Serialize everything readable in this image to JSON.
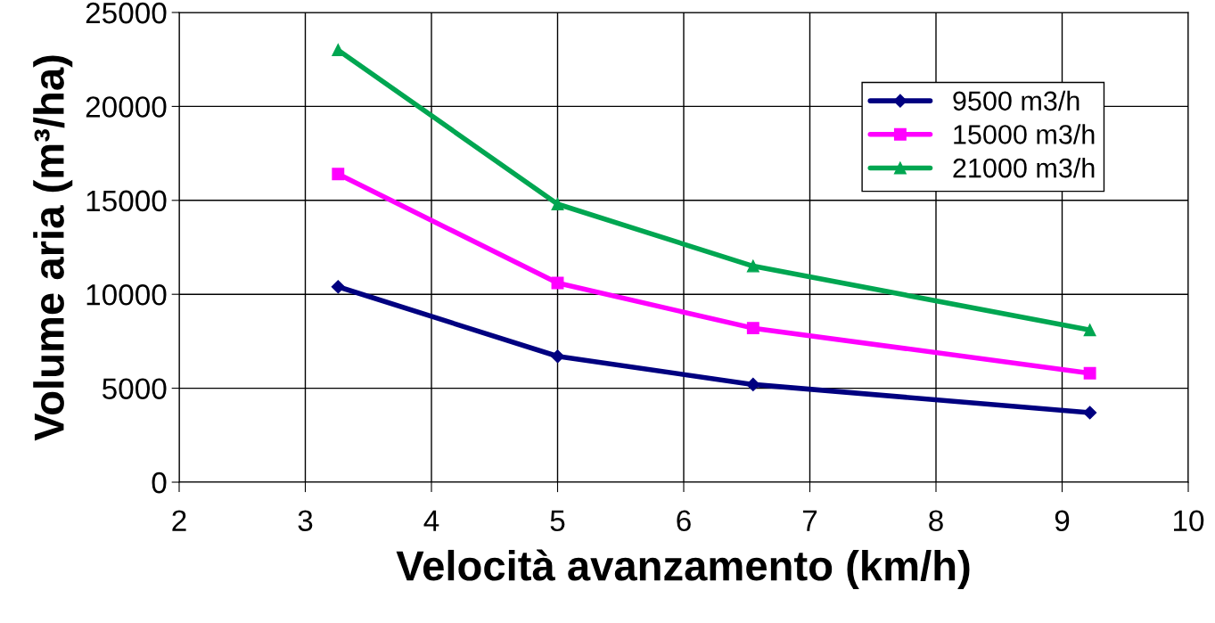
{
  "chart_data": {
    "type": "line",
    "xlabel": "Velocità avanzamento (km/h)",
    "ylabel": "Volume aria (m³/ha)",
    "x": [
      3.26,
      5.0,
      6.55,
      9.22
    ],
    "series": [
      {
        "name": "9500 m3/h",
        "color": "#000080",
        "marker": "diamond",
        "values": [
          10400,
          6700,
          5200,
          3700
        ]
      },
      {
        "name": "15000 m3/h",
        "color": "#ff00ff",
        "marker": "square",
        "values": [
          16400,
          10600,
          8200,
          5800
        ]
      },
      {
        "name": "21000 m3/h",
        "color": "#00a651",
        "marker": "triangle",
        "values": [
          23000,
          14800,
          11500,
          8100
        ]
      }
    ],
    "xlim": [
      2,
      10
    ],
    "xticks": [
      2,
      3,
      4,
      5,
      6,
      7,
      8,
      9,
      10
    ],
    "ylim": [
      0,
      25000
    ],
    "yticks": [
      0,
      5000,
      10000,
      15000,
      20000,
      25000
    ],
    "grid": true,
    "legend": "top right",
    "line_style": "solid"
  }
}
